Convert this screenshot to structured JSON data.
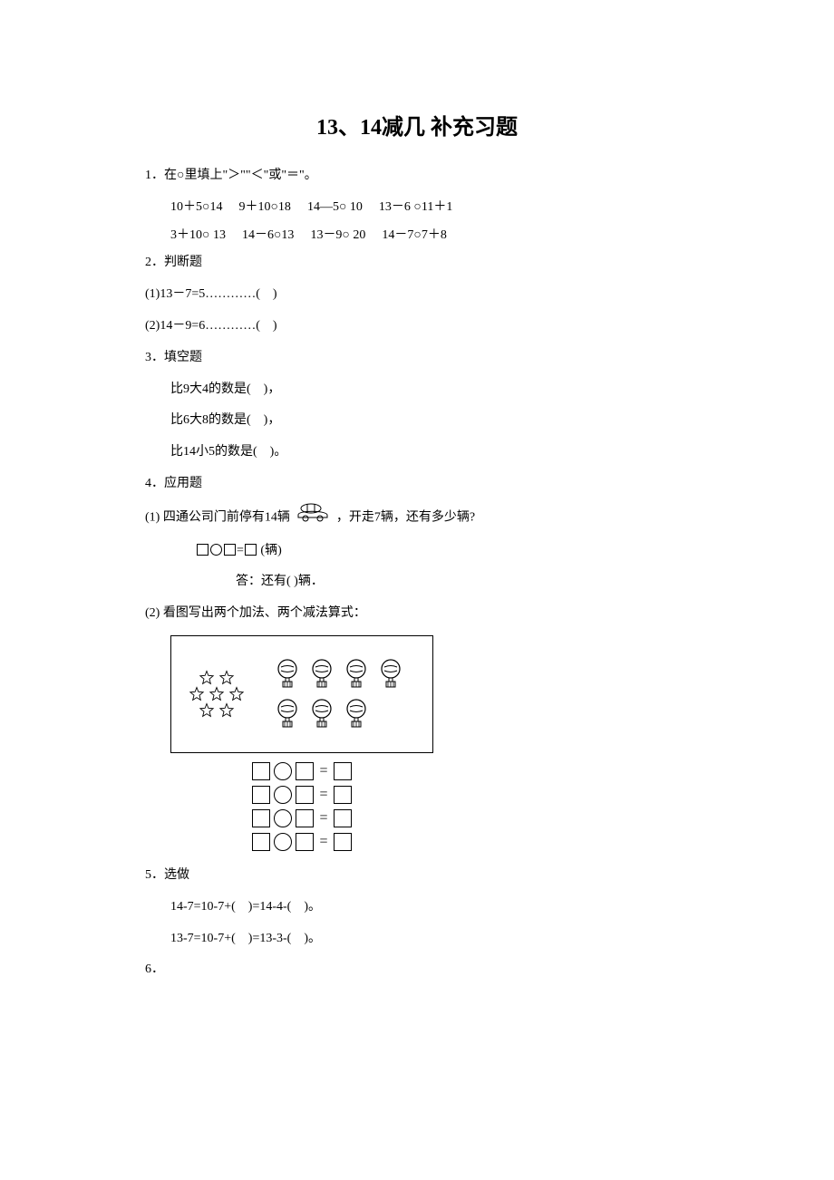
{
  "title": "13、14减几 补充习题",
  "q1": {
    "label": "1．在○里填上\"＞\"\"＜\"或\"＝\"。",
    "row1": [
      "10＋5○14",
      "9＋10○18",
      "14―5○ 10",
      "13－6 ○11＋1"
    ],
    "row2": [
      "3＋10○ 13",
      "14－6○13",
      "13－9○ 20",
      "14－7○7＋8"
    ]
  },
  "q2": {
    "label": "2．判断题",
    "items": [
      "(1)13－7=5…………(　)",
      "(2)14－9=6…………(　)"
    ]
  },
  "q3": {
    "label": "3．填空题",
    "items": [
      "比9大4的数是(　)，",
      "比6大8的数是(　)，",
      "比14小5的数是(　)。"
    ]
  },
  "q4": {
    "label": "4．应用题",
    "sub1_pre": "(1) 四通公司门前停有14辆",
    "sub1_post": "，开走7辆，还有多少辆?",
    "eq_tail": "(辆)",
    "ans": "答：还有( )辆．",
    "sub2": "(2) 看图写出两个加法、两个减法算式："
  },
  "figure": {
    "stars_per_row": [
      2,
      3,
      2
    ],
    "balls_per_row": [
      4,
      3
    ],
    "box_border_color": "#000000",
    "star_color": "#000000",
    "ball_stroke": "#000000",
    "ball_fill": "#ffffff",
    "eq_rows": 4
  },
  "q5": {
    "label": "5．选做",
    "items": [
      "14-7=10-7+(　)=14-4-(　)。",
      "13-7=10-7+(　)=13-3-(　)。"
    ]
  },
  "q6": {
    "label": "6．"
  },
  "style": {
    "background_color": "#ffffff",
    "text_color": "#000000",
    "title_fontsize": 24,
    "body_fontsize": 14,
    "font_family": "SimSun"
  }
}
